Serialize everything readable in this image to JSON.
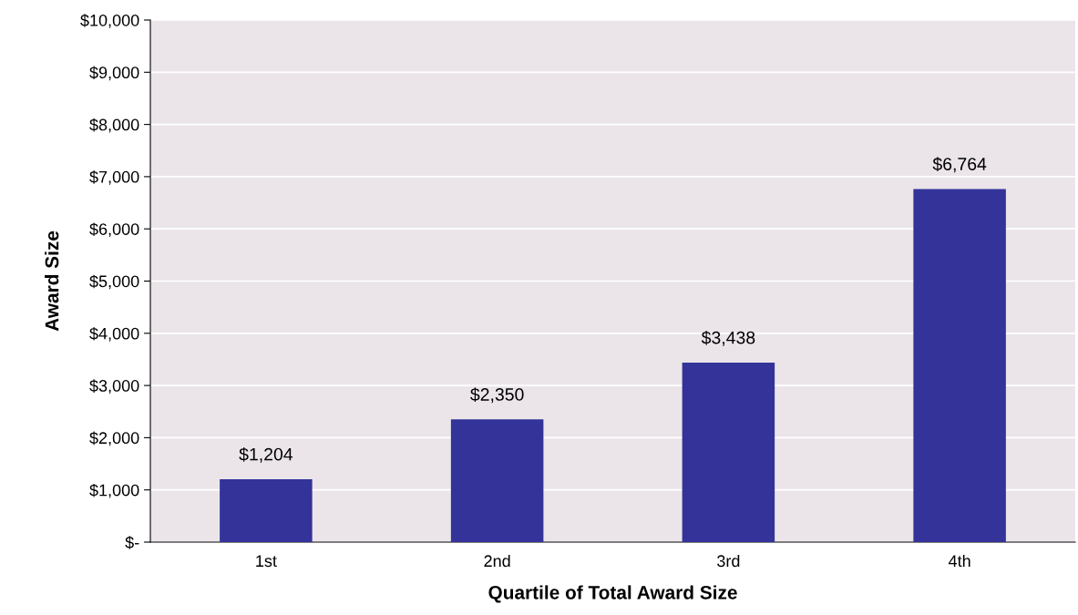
{
  "chart_data": {
    "type": "bar",
    "xlabel": "Quartile of Total Award Size",
    "ylabel": "Award Size",
    "categories": [
      "1st",
      "2nd",
      "3rd",
      "4th"
    ],
    "values": [
      1204,
      2350,
      3438,
      6764
    ],
    "value_labels": [
      "$1,204",
      "$2,350",
      "$3,438",
      "$6,764"
    ],
    "color": "#333399",
    "ylim": [
      0,
      10000
    ],
    "yticks": [
      {
        "value": 0,
        "label": "$-"
      },
      {
        "value": 1000,
        "label": "$1,000"
      },
      {
        "value": 2000,
        "label": "$2,000"
      },
      {
        "value": 3000,
        "label": "$3,000"
      },
      {
        "value": 4000,
        "label": "$4,000"
      },
      {
        "value": 5000,
        "label": "$5,000"
      },
      {
        "value": 6000,
        "label": "$6,000"
      },
      {
        "value": 7000,
        "label": "$7,000"
      },
      {
        "value": 8000,
        "label": "$8,000"
      },
      {
        "value": 9000,
        "label": "$9,000"
      },
      {
        "value": 10000,
        "label": "$10,000"
      }
    ],
    "grid": "y",
    "legend": false
  }
}
